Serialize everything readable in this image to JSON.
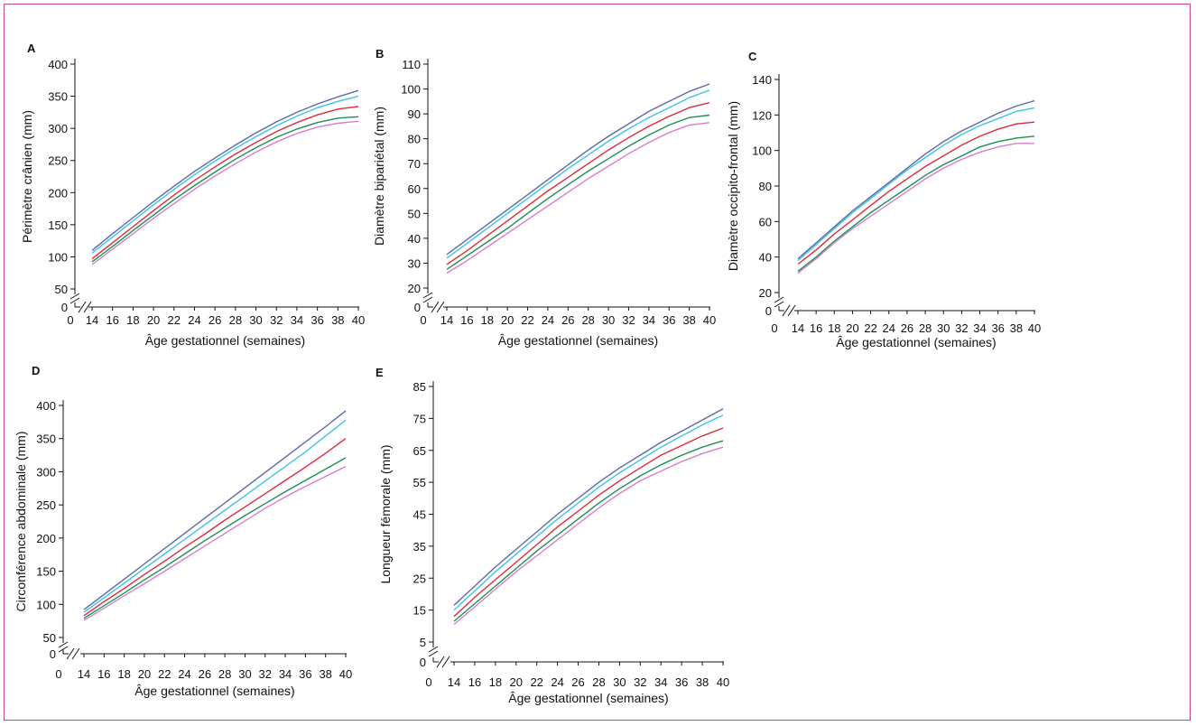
{
  "colors": {
    "frame": "#c0478f",
    "series": [
      "#5b6aa8",
      "#3cc3ea",
      "#e02a3a",
      "#1d8f4f",
      "#d97ccf"
    ]
  },
  "chart_data": [
    {
      "id": "A",
      "type": "line",
      "panel": "A",
      "xlabel": "Âge gestationnel (semaines)",
      "ylabel": "Périmètre crânien (mm)",
      "xticks": [
        0,
        14,
        16,
        18,
        20,
        22,
        24,
        26,
        28,
        30,
        32,
        34,
        36,
        38,
        40
      ],
      "yticks": [
        0,
        50,
        100,
        150,
        200,
        250,
        300,
        350,
        400
      ],
      "axis_break": true,
      "x": [
        14,
        16,
        18,
        20,
        22,
        24,
        26,
        28,
        30,
        32,
        34,
        36,
        38,
        40
      ],
      "series": [
        {
          "values": [
            110,
            136,
            161,
            186,
            210,
            233,
            254,
            274,
            293,
            310,
            325,
            338,
            349,
            359
          ]
        },
        {
          "values": [
            106,
            131,
            156,
            181,
            205,
            228,
            249,
            269,
            287,
            304,
            319,
            332,
            342,
            350
          ]
        },
        {
          "values": [
            97,
            122,
            147,
            172,
            196,
            219,
            240,
            260,
            278,
            295,
            309,
            321,
            330,
            334
          ]
        },
        {
          "values": [
            92,
            116,
            141,
            165,
            189,
            211,
            232,
            252,
            270,
            286,
            299,
            309,
            316,
            318
          ]
        },
        {
          "values": [
            88,
            112,
            136,
            160,
            183,
            205,
            226,
            245,
            263,
            279,
            292,
            302,
            308,
            311
          ]
        }
      ]
    },
    {
      "id": "B",
      "type": "line",
      "panel": "B",
      "xlabel": "Âge gestationnel (semaines)",
      "ylabel": "Diamètre bipariétal (mm)",
      "xticks": [
        0,
        14,
        16,
        18,
        20,
        22,
        24,
        26,
        28,
        30,
        32,
        34,
        36,
        38,
        40
      ],
      "yticks": [
        0,
        20,
        30,
        40,
        50,
        60,
        70,
        80,
        90,
        100,
        110
      ],
      "axis_break": true,
      "x": [
        14,
        16,
        18,
        20,
        22,
        24,
        26,
        28,
        30,
        32,
        34,
        36,
        38,
        40
      ],
      "series": [
        {
          "values": [
            33.5,
            39.5,
            45.5,
            51.5,
            57.5,
            63.5,
            69.5,
            75.5,
            81,
            86,
            91,
            95,
            99,
            102
          ]
        },
        {
          "values": [
            32,
            38,
            44,
            50,
            56,
            62,
            68,
            73.5,
            79,
            84,
            88.5,
            92.5,
            96.5,
            99.5
          ]
        },
        {
          "values": [
            29.5,
            35,
            41,
            47,
            53,
            59,
            64.5,
            70,
            75.5,
            80.5,
            85,
            89,
            92.5,
            94.5
          ]
        },
        {
          "values": [
            27.5,
            33,
            38.5,
            44,
            50,
            56,
            61.5,
            67,
            72,
            77,
            81.5,
            85.5,
            88.5,
            89.5
          ]
        },
        {
          "values": [
            26,
            31,
            36.5,
            42,
            47.5,
            53,
            58.5,
            64,
            69,
            74,
            78.5,
            82.5,
            85.5,
            86.5
          ]
        }
      ]
    },
    {
      "id": "C",
      "type": "line",
      "panel": "C",
      "xlabel": "Âge gestationnel (semaines)",
      "ylabel": "Diamètre occipito-frontal (mm)",
      "xticks": [
        0,
        14,
        16,
        18,
        20,
        22,
        24,
        26,
        28,
        30,
        32,
        34,
        36,
        38,
        40
      ],
      "yticks": [
        0,
        20,
        40,
        60,
        80,
        100,
        120,
        140
      ],
      "axis_break": true,
      "x": [
        14,
        16,
        18,
        20,
        22,
        24,
        26,
        28,
        30,
        32,
        34,
        36,
        38,
        40
      ],
      "series": [
        {
          "values": [
            39,
            48,
            57,
            66,
            74,
            82,
            90,
            98,
            105,
            111,
            116,
            121,
            125,
            128
          ]
        },
        {
          "values": [
            38,
            47,
            56,
            65,
            73,
            81,
            89,
            96,
            103,
            109,
            114,
            118,
            122,
            124
          ]
        },
        {
          "values": [
            36,
            44,
            53,
            61,
            69,
            77,
            84,
            91,
            97,
            103,
            108,
            112,
            115,
            116
          ]
        },
        {
          "values": [
            32,
            40,
            49,
            57,
            65,
            72,
            79,
            86,
            92,
            97,
            102,
            105,
            107,
            108
          ]
        },
        {
          "values": [
            31,
            39,
            48,
            56,
            63,
            70,
            77,
            84,
            90,
            95,
            99,
            102,
            104,
            104
          ]
        }
      ]
    },
    {
      "id": "D",
      "type": "line",
      "panel": "D",
      "xlabel": "Âge gestationnel (semaines)",
      "ylabel": "Circonférence abdominale (mm)",
      "xticks": [
        0,
        14,
        16,
        18,
        20,
        22,
        24,
        26,
        28,
        30,
        32,
        34,
        36,
        38,
        40
      ],
      "yticks": [
        0,
        50,
        100,
        150,
        200,
        250,
        300,
        350,
        400
      ],
      "axis_break": true,
      "x": [
        14,
        16,
        18,
        20,
        22,
        24,
        26,
        28,
        30,
        32,
        34,
        36,
        38,
        40
      ],
      "series": [
        {
          "values": [
            92,
            115,
            138,
            161,
            184,
            207,
            230,
            253,
            276,
            299,
            322,
            345,
            368,
            392
          ]
        },
        {
          "values": [
            88,
            110,
            132,
            154,
            176,
            198,
            220,
            242,
            264,
            286,
            308,
            330,
            354,
            378
          ]
        },
        {
          "values": [
            83,
            104,
            124,
            145,
            165,
            186,
            206,
            227,
            247,
            267,
            287,
            307,
            328,
            350
          ]
        },
        {
          "values": [
            79,
            98,
            117,
            137,
            156,
            176,
            196,
            215,
            234,
            252,
            270,
            287,
            304,
            321
          ]
        },
        {
          "values": [
            76,
            94,
            113,
            131,
            150,
            169,
            188,
            207,
            226,
            245,
            262,
            278,
            293,
            308
          ]
        }
      ]
    },
    {
      "id": "E",
      "type": "line",
      "panel": "E",
      "xlabel": "Âge gestationnel (semaines)",
      "ylabel": "Longueur fémorale (mm)",
      "xticks": [
        0,
        14,
        16,
        18,
        20,
        22,
        24,
        26,
        28,
        30,
        32,
        34,
        36,
        38,
        40
      ],
      "yticks": [
        0,
        5,
        15,
        25,
        35,
        45,
        55,
        65,
        75,
        85
      ],
      "axis_break": true,
      "x": [
        14,
        16,
        18,
        20,
        22,
        24,
        26,
        28,
        30,
        32,
        34,
        36,
        38,
        40
      ],
      "series": [
        {
          "values": [
            16.5,
            22.5,
            28.5,
            34,
            39.5,
            45,
            50,
            55,
            59.5,
            63.5,
            67.5,
            71,
            74.5,
            78
          ]
        },
        {
          "values": [
            15,
            21,
            27,
            32.5,
            38,
            43.5,
            48.5,
            53.5,
            58,
            62,
            66,
            69.5,
            73,
            76
          ]
        },
        {
          "values": [
            13,
            19,
            24.5,
            30,
            35.5,
            41,
            46,
            51,
            55.5,
            59.5,
            63.5,
            66.5,
            69.5,
            72
          ]
        },
        {
          "values": [
            11.5,
            17,
            22.5,
            28,
            33.5,
            38.5,
            43.5,
            48.5,
            53,
            57,
            60.5,
            63.5,
            66,
            68
          ]
        },
        {
          "values": [
            10.5,
            16,
            21.5,
            27,
            32,
            37,
            42,
            47,
            51.5,
            55.5,
            58.5,
            61.5,
            64,
            66
          ]
        }
      ]
    }
  ]
}
